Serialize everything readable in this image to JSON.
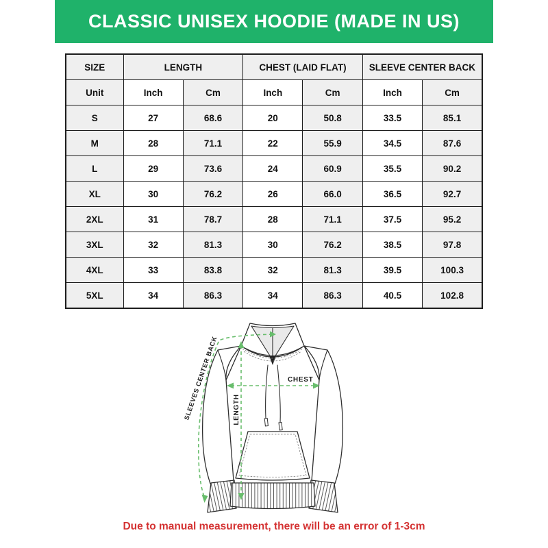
{
  "banner": {
    "title": "CLASSIC UNISEX HOODIE (MADE IN US)",
    "bg_color": "#1fb26a",
    "text_color": "#ffffff"
  },
  "size_table": {
    "groups": [
      {
        "label": "SIZE"
      },
      {
        "label": "LENGTH"
      },
      {
        "label": "CHEST (LAID FLAT)"
      },
      {
        "label": "SLEEVE CENTER BACK"
      }
    ],
    "unit_row": [
      "Unit",
      "Inch",
      "Cm",
      "Inch",
      "Cm",
      "Inch",
      "Cm"
    ],
    "rows": [
      {
        "size": "S",
        "values": [
          "27",
          "68.6",
          "20",
          "50.8",
          "33.5",
          "85.1"
        ]
      },
      {
        "size": "M",
        "values": [
          "28",
          "71.1",
          "22",
          "55.9",
          "34.5",
          "87.6"
        ]
      },
      {
        "size": "L",
        "values": [
          "29",
          "73.6",
          "24",
          "60.9",
          "35.5",
          "90.2"
        ]
      },
      {
        "size": "XL",
        "values": [
          "30",
          "76.2",
          "26",
          "66.0",
          "36.5",
          "92.7"
        ]
      },
      {
        "size": "2XL",
        "values": [
          "31",
          "78.7",
          "28",
          "71.1",
          "37.5",
          "95.2"
        ]
      },
      {
        "size": "3XL",
        "values": [
          "32",
          "81.3",
          "30",
          "76.2",
          "38.5",
          "97.8"
        ]
      },
      {
        "size": "4XL",
        "values": [
          "33",
          "83.8",
          "32",
          "81.3",
          "39.5",
          "100.3"
        ]
      },
      {
        "size": "5XL",
        "values": [
          "34",
          "86.3",
          "34",
          "86.3",
          "40.5",
          "102.8"
        ]
      }
    ],
    "header_bg": "#efefef",
    "border_color": "#1c1c1c"
  },
  "diagram": {
    "labels": {
      "sleeve": "SLEEVES CENTER BACK",
      "chest": "CHEST",
      "length": "LENGTH"
    },
    "arrow_color": "#68bd6c",
    "line_color": "#2e2e2e"
  },
  "note": {
    "text": "Due to manual measurement, there will be an error of 1-3cm",
    "color": "#d43232"
  }
}
